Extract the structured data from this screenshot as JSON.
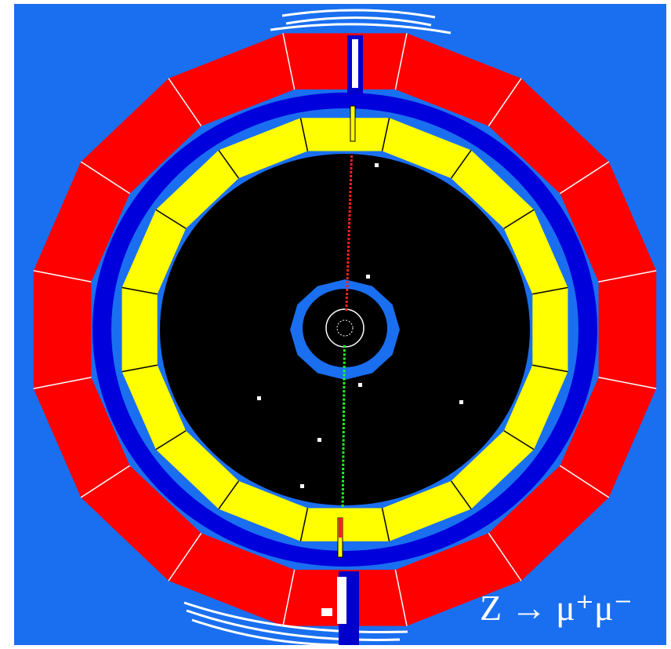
{
  "label": "Z → μ⁺μ⁻"
}
